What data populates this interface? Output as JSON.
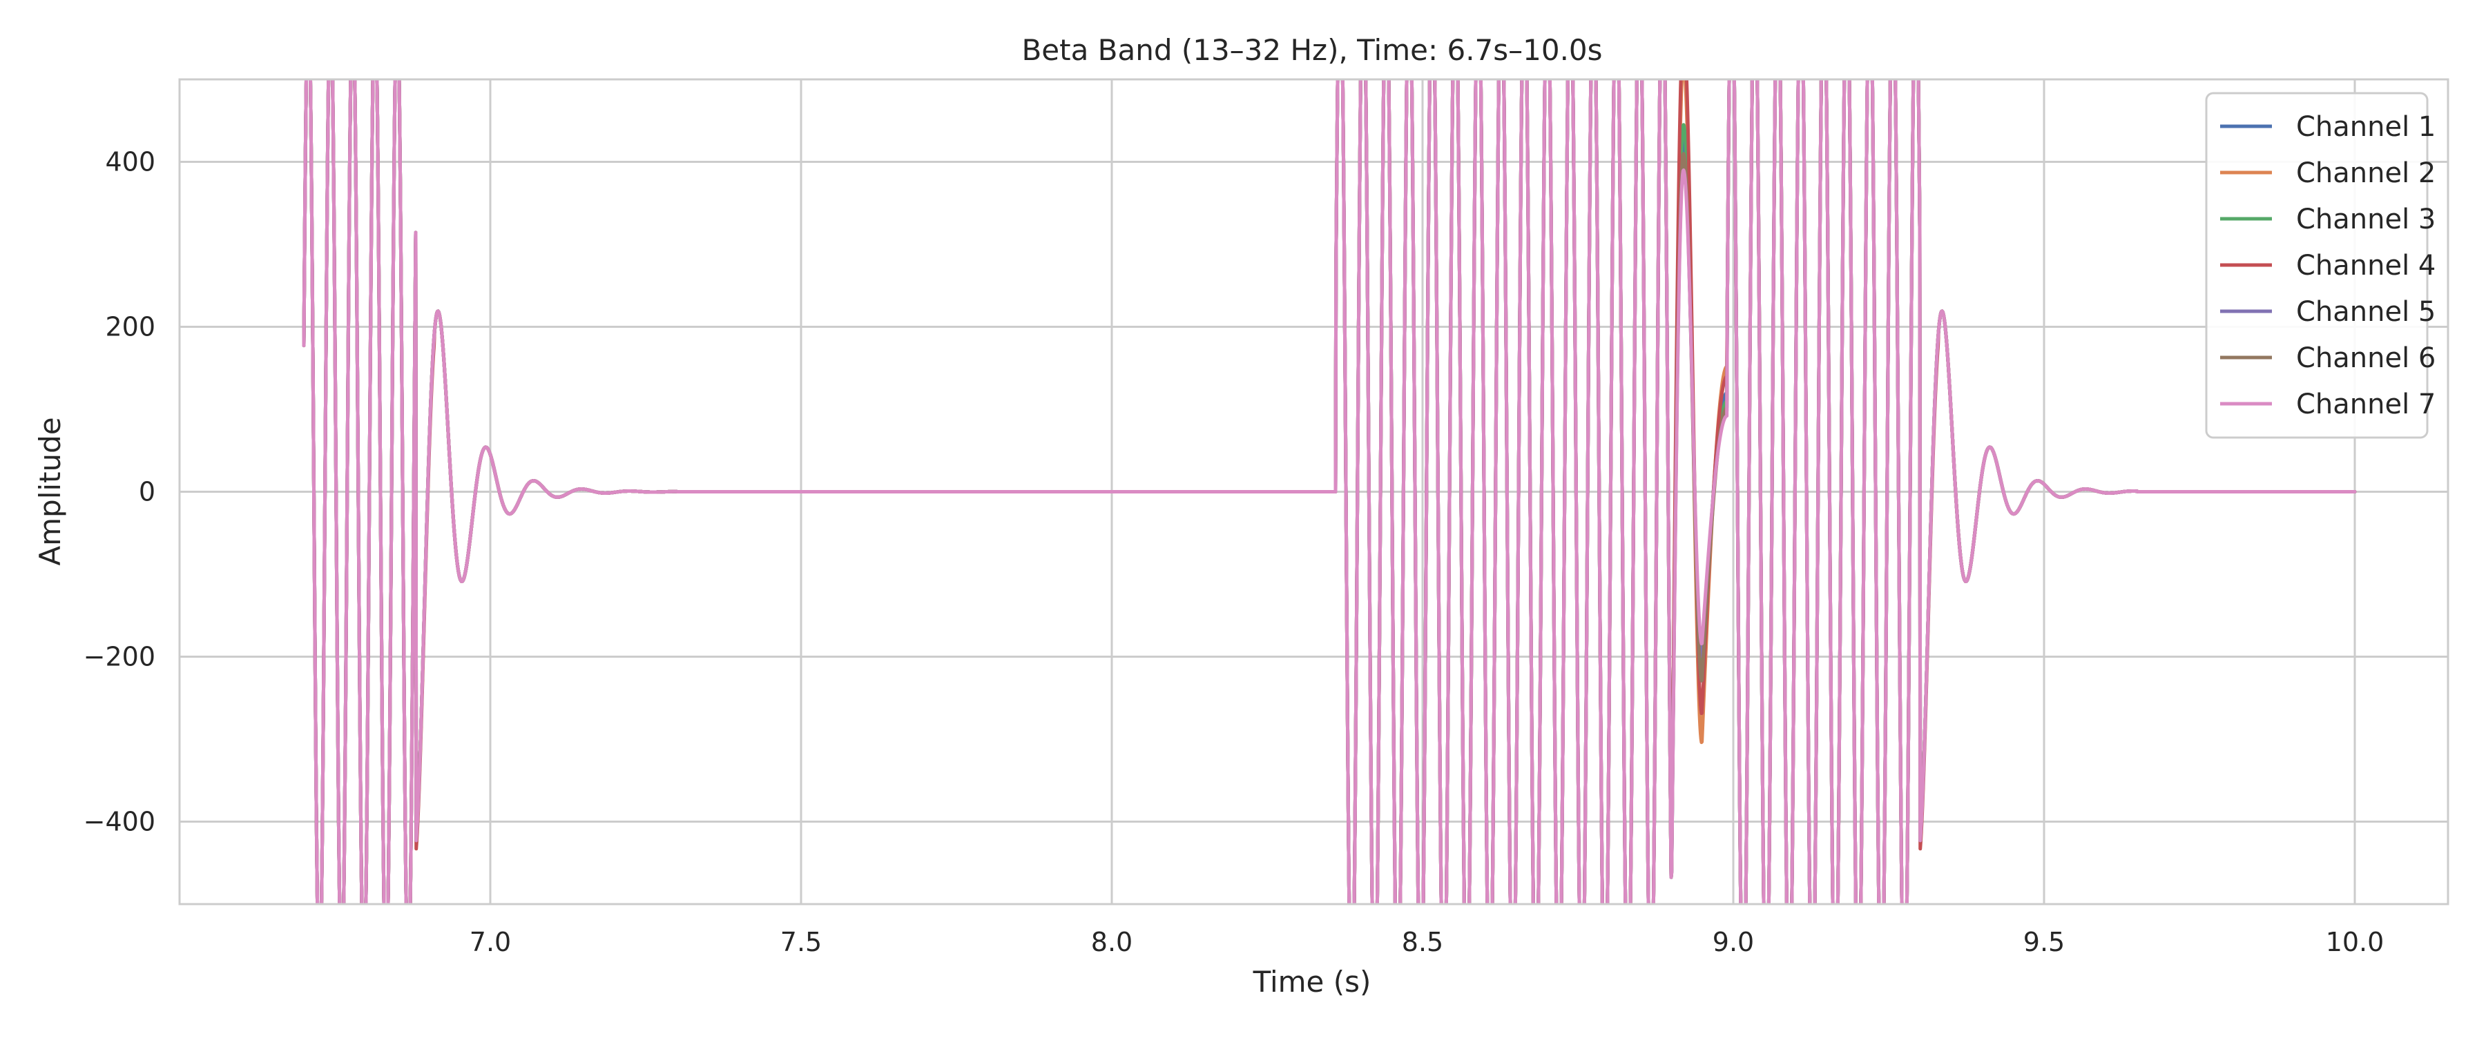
{
  "chart_data": {
    "type": "line",
    "title": "Beta Band (13–32 Hz), Time: 6.7s–10.0s",
    "xlabel": "Time (s)",
    "ylabel": "Amplitude",
    "xlim": [
      6.5,
      10.15
    ],
    "ylim": [
      -500,
      500
    ],
    "xticks": [
      7.0,
      7.5,
      8.0,
      8.5,
      9.0,
      9.5,
      10.0
    ],
    "xtick_labels": [
      "7.0",
      "7.5",
      "8.0",
      "8.5",
      "9.0",
      "9.5",
      "10.0"
    ],
    "yticks": [
      -400,
      -200,
      0,
      200,
      400
    ],
    "ytick_labels": [
      "−400",
      "−200",
      "0",
      "200",
      "400"
    ],
    "grid": true,
    "legend_position": "top-right",
    "series": [
      {
        "name": "Channel 1",
        "color": "#4c72b0"
      },
      {
        "name": "Channel 2",
        "color": "#dd8452"
      },
      {
        "name": "Channel 3",
        "color": "#55a868"
      },
      {
        "name": "Channel 4",
        "color": "#c44e52"
      },
      {
        "name": "Channel 5",
        "color": "#8172b3"
      },
      {
        "name": "Channel 6",
        "color": "#937860"
      },
      {
        "name": "Channel 7",
        "color": "#da8bc3"
      }
    ],
    "signal_segments": [
      {
        "start": 6.7,
        "end": 6.88,
        "type": "clipped-oscillation",
        "frequency_hz": 28,
        "amplitude": 600
      },
      {
        "start": 6.88,
        "end": 7.3,
        "type": "decaying-oscillation",
        "frequency_hz": 13,
        "amplitude": 430,
        "decay_tau": 0.055
      },
      {
        "start": 7.3,
        "end": 8.36,
        "type": "flat",
        "value": 0
      },
      {
        "start": 8.36,
        "end": 8.9,
        "type": "clipped-oscillation",
        "frequency_hz": 27,
        "amplitude": 650
      },
      {
        "start": 8.9,
        "end": 8.99,
        "type": "burst",
        "frequency_hz": 12,
        "amplitude": 420
      },
      {
        "start": 8.99,
        "end": 9.3,
        "type": "clipped-oscillation",
        "frequency_hz": 27,
        "amplitude": 650
      },
      {
        "start": 9.3,
        "end": 9.65,
        "type": "decaying-oscillation",
        "frequency_hz": 13,
        "amplitude": 430,
        "decay_tau": 0.055
      },
      {
        "start": 9.65,
        "end": 10.0,
        "type": "flat",
        "value": 0
      }
    ],
    "channel_variation": {
      "burst_peaks": [
        430,
        520,
        445,
        560,
        400,
        410,
        390
      ],
      "burst_troughs": [
        -230,
        -305,
        -215,
        -270,
        -200,
        -230,
        -185
      ],
      "tail_peaks": [
        120,
        152,
        110,
        140,
        98,
        102,
        92
      ],
      "decay_trough_offsets": [
        0,
        0,
        0,
        -10,
        0,
        0,
        0
      ]
    }
  }
}
